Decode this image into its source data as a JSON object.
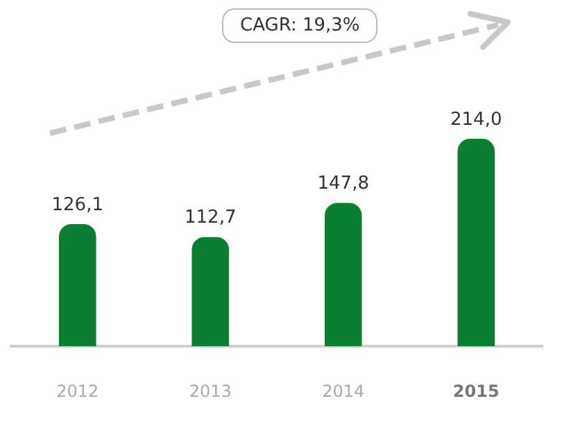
{
  "chart_data": {
    "type": "bar",
    "categories": [
      "2012",
      "2013",
      "2014",
      "2015"
    ],
    "values": [
      126.1,
      112.7,
      147.8,
      214.0
    ],
    "value_labels": [
      "126,1",
      "112,7",
      "147,8",
      "214,0"
    ],
    "color": "#0a7f32",
    "annotations": [
      "CAGR: 19,3%"
    ],
    "grid": false,
    "legend": false
  }
}
